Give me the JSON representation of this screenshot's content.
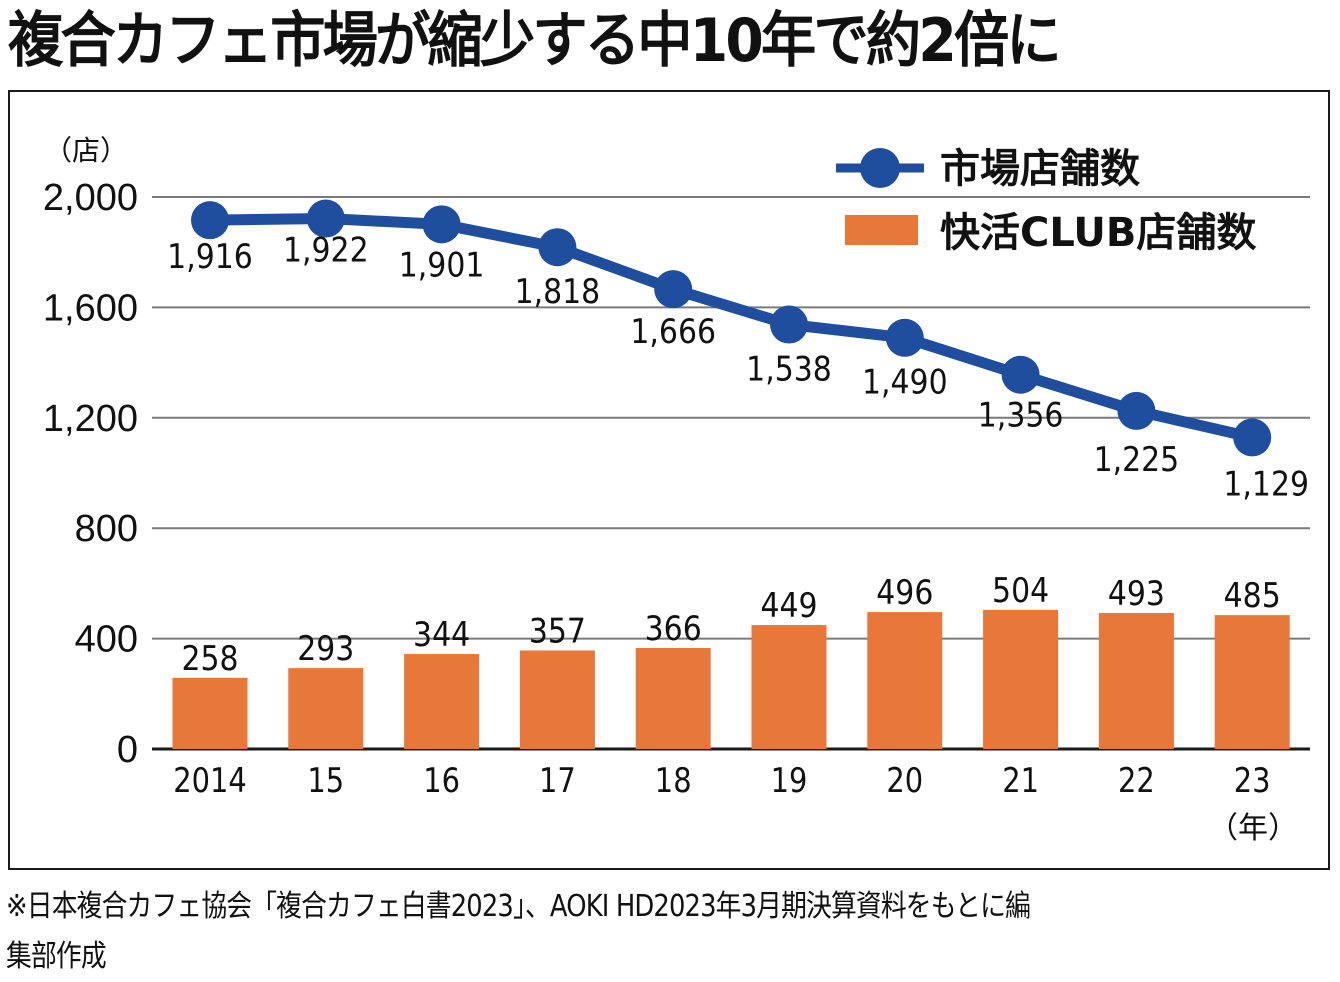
{
  "title": "複合カフェ市場が縮少する中10年で約2倍に",
  "note_lines": [
    "※日本複合カフェ協会「複合カフェ白書2023」、AOKI HD2023年3月期決算資料をもとに編",
    "集部作成"
  ],
  "colors": {
    "market": "#1f4e9e",
    "kaikatsu": "#e8773a",
    "grid": "#7a7a7a",
    "axis": "#1a1a1a"
  },
  "chart_data": {
    "type": "bar+line",
    "title": "複合カフェ市場が縮少する中10年で約2倍に",
    "ylabel": "（店）",
    "xlabel": "（年）",
    "ylim": [
      0,
      2000
    ],
    "yticks": [
      0,
      400,
      800,
      1200,
      1600,
      2000
    ],
    "ytick_labels": [
      "0",
      "400",
      "800",
      "1,200",
      "1,600",
      "2,000"
    ],
    "grid": true,
    "legend_position": "top-right",
    "categories": [
      "2014",
      "15",
      "16",
      "17",
      "18",
      "19",
      "20",
      "21",
      "22",
      "23"
    ],
    "series": [
      {
        "name": "市場店舗数",
        "type": "line",
        "values": [
          1916,
          1922,
          1901,
          1818,
          1666,
          1538,
          1490,
          1356,
          1225,
          1129
        ],
        "labels": [
          "1,916",
          "1,922",
          "1,901",
          "1,818",
          "1,666",
          "1,538",
          "1,490",
          "1,356",
          "1,225",
          "1,129"
        ]
      },
      {
        "name": "快活CLUB店舗数",
        "type": "bar",
        "values": [
          258,
          293,
          344,
          357,
          366,
          449,
          496,
          504,
          493,
          485
        ],
        "labels": [
          "258",
          "293",
          "344",
          "357",
          "366",
          "449",
          "496",
          "504",
          "493",
          "485"
        ]
      }
    ]
  }
}
